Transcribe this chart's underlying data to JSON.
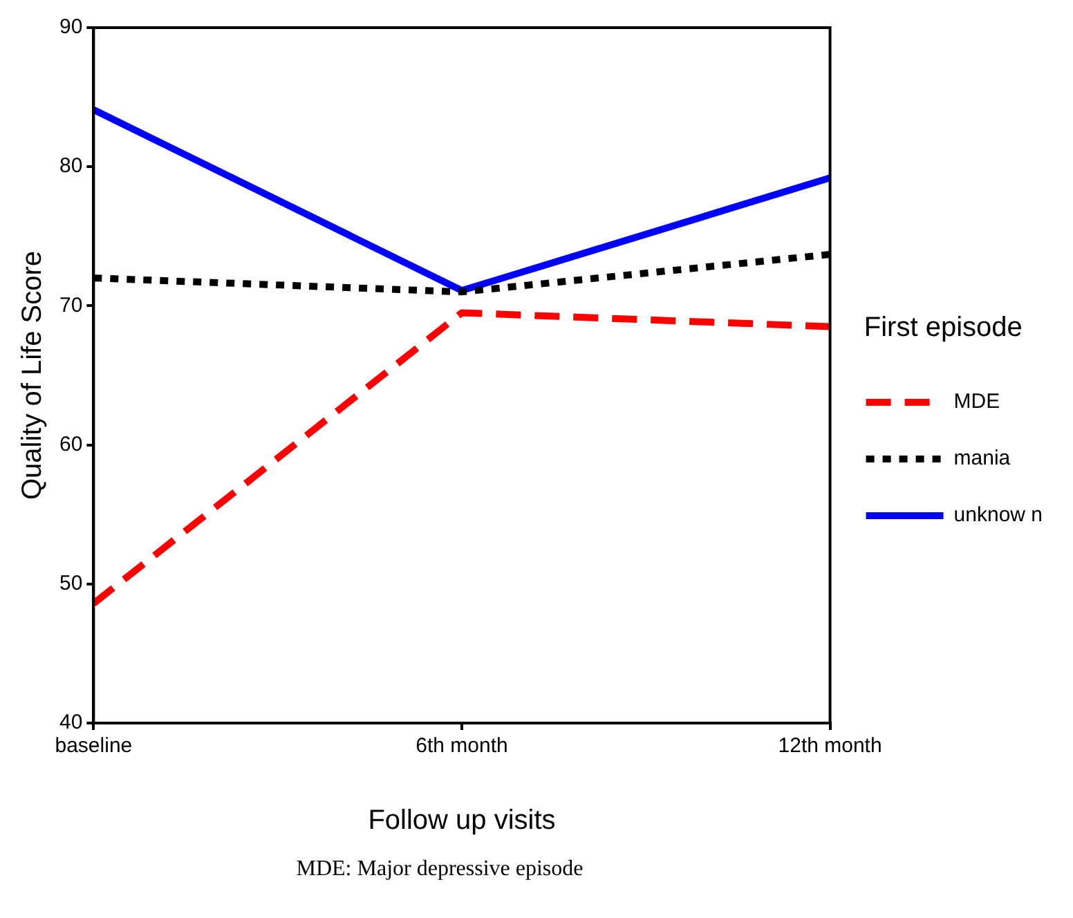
{
  "chart_data": {
    "type": "line",
    "xlabel": "Follow up visits",
    "ylabel": "Quality of Life Score",
    "legend_title": "First episode",
    "legend": "right",
    "grid": false,
    "marker": "none",
    "categories": [
      "baseline",
      "6th month",
      "12th month"
    ],
    "ylim": [
      40,
      90
    ],
    "yticks": [
      40,
      50,
      60,
      70,
      80,
      90
    ],
    "series": [
      {
        "name": "MDE",
        "color": "#ff0000",
        "line_style": "dashed",
        "values": [
          48.6,
          69.5,
          68.5
        ]
      },
      {
        "name": "mania",
        "color": "#000000",
        "line_style": "dotted",
        "values": [
          72.0,
          71.0,
          73.7
        ]
      },
      {
        "name": "unknow n",
        "color": "#0000ff",
        "line_style": "solid",
        "values": [
          84.1,
          71.1,
          79.2
        ]
      }
    ],
    "annotations": [
      "MDE: Major depressive episode"
    ]
  }
}
